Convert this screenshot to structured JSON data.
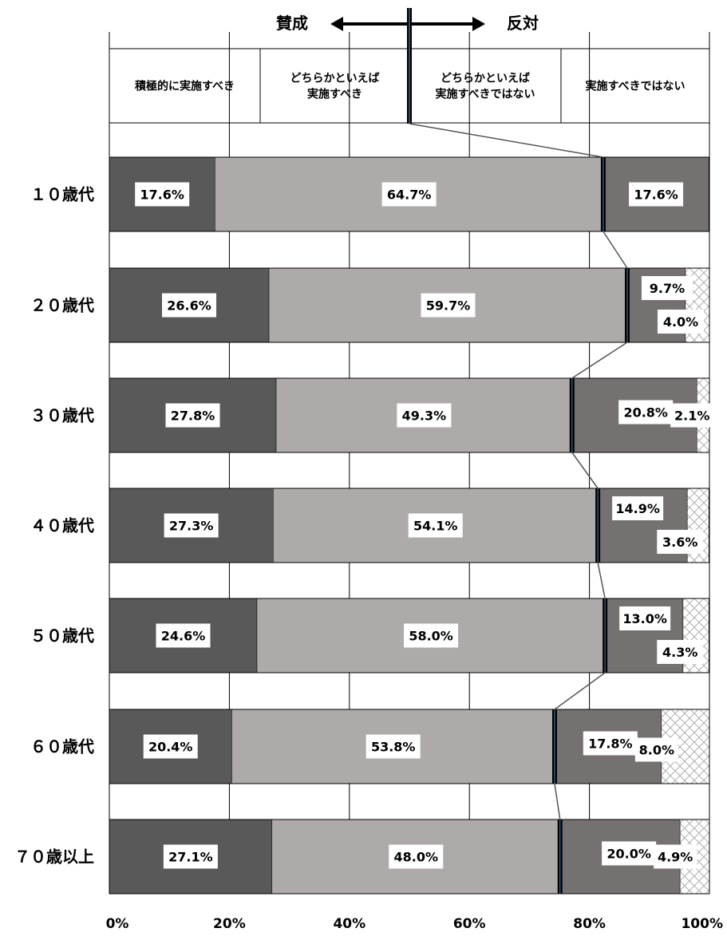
{
  "header": {
    "support_label": "賛成",
    "oppose_label": "反対"
  },
  "chart_data": {
    "type": "bar",
    "stacked": true,
    "orientation": "horizontal",
    "categories": [
      "１０歳代",
      "２０歳代",
      "３０歳代",
      "４０歳代",
      "５０歳代",
      "６０歳代",
      "７０歳以上"
    ],
    "series": [
      {
        "name": "積極的に実施すべき",
        "color": "#595959",
        "values": [
          17.6,
          26.6,
          27.8,
          27.3,
          24.6,
          20.4,
          27.1
        ]
      },
      {
        "name": "どちらかといえば実施すべき",
        "name_lines": [
          "どちらかといえば",
          "実施すべき"
        ],
        "color": "#aeaaaa",
        "values": [
          64.7,
          59.7,
          49.3,
          54.1,
          58.0,
          53.8,
          48.0
        ]
      },
      {
        "name": "どちらかといえば実施すべきではない",
        "name_lines": [
          "どちらかといえば",
          "実施すべきではない"
        ],
        "color": "#767171",
        "values": [
          17.6,
          9.7,
          20.8,
          14.9,
          13.0,
          17.8,
          20.0
        ]
      },
      {
        "name": "実施すべきではない",
        "color": "#ffffff",
        "pattern": "crosshatch",
        "values": [
          0,
          4.0,
          2.1,
          3.6,
          4.3,
          8.0,
          4.9
        ]
      }
    ],
    "data_labels": [
      [
        "17.6%",
        "64.7%",
        "17.6%",
        ""
      ],
      [
        "26.6%",
        "59.7%",
        "9.7%",
        "4.0%"
      ],
      [
        "27.8%",
        "49.3%",
        "20.8%",
        "2.1%"
      ],
      [
        "27.3%",
        "54.1%",
        "14.9%",
        "3.6%"
      ],
      [
        "24.6%",
        "58.0%",
        "13.0%",
        "4.3%"
      ],
      [
        "20.4%",
        "53.8%",
        "17.8%",
        "8.0%"
      ],
      [
        "27.1%",
        "48.0%",
        "20.0%",
        "4.9%"
      ]
    ],
    "xlim": [
      0,
      100
    ],
    "x_ticks": [
      0,
      20,
      40,
      60,
      80,
      100
    ],
    "x_tick_labels": [
      "0%",
      "20%",
      "40%",
      "60%",
      "80%",
      "100%"
    ],
    "grid": true,
    "divider_line": "support/oppose boundary connecting bars",
    "legend": "top"
  }
}
